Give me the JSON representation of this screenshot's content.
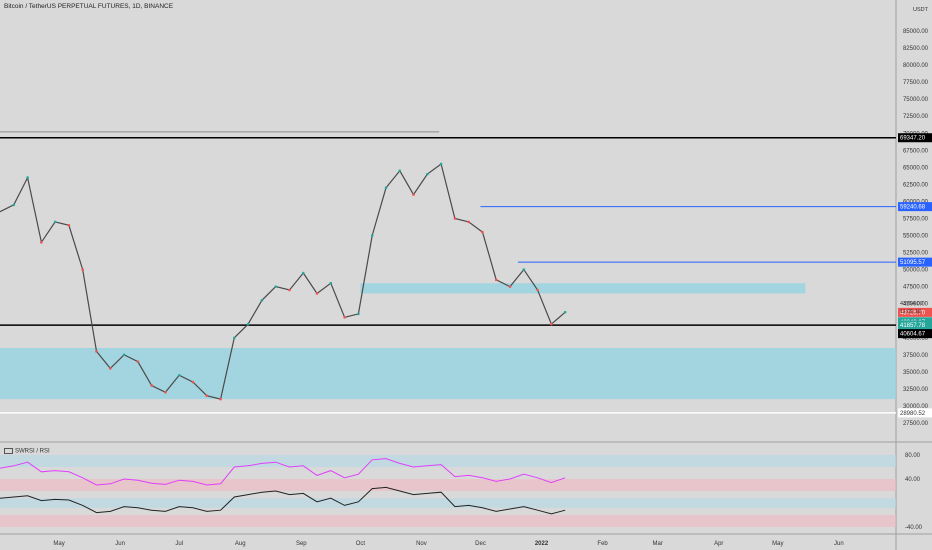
{
  "header": {
    "title": "Bitcoin / TetherUS PERPETUAL FUTURES, 1D, BINANCE",
    "currency": "USDT"
  },
  "indicator": {
    "label": "SWRSI / RSI"
  },
  "colors": {
    "background": "#d9d9d9",
    "up": "#26a69a",
    "down": "#ef5350",
    "blue_line": "#2962ff",
    "zone": "#8fd3e0",
    "rsi_magenta": "#e040fb",
    "rsi_black": "#222222"
  },
  "chart_data": {
    "type": "line",
    "x": [
      "2021-04-01",
      "2021-04-08",
      "2021-04-15",
      "2021-04-22",
      "2021-04-29",
      "2021-05-06",
      "2021-05-13",
      "2021-05-20",
      "2021-05-27",
      "2021-06-03",
      "2021-06-10",
      "2021-06-17",
      "2021-06-24",
      "2021-07-01",
      "2021-07-08",
      "2021-07-15",
      "2021-07-22",
      "2021-07-29",
      "2021-08-05",
      "2021-08-12",
      "2021-08-19",
      "2021-08-26",
      "2021-09-02",
      "2021-09-09",
      "2021-09-16",
      "2021-09-23",
      "2021-09-30",
      "2021-10-07",
      "2021-10-14",
      "2021-10-21",
      "2021-10-28",
      "2021-11-04",
      "2021-11-11",
      "2021-11-18",
      "2021-11-25",
      "2021-12-02",
      "2021-12-09",
      "2021-12-16",
      "2021-12-23",
      "2021-12-30",
      "2022-01-06",
      "2022-01-13"
    ],
    "series": [
      {
        "values": [
          58500,
          59500,
          63500,
          54000,
          57000,
          56500,
          50000,
          38000,
          35500,
          37500,
          36500,
          33000,
          32000,
          34500,
          33500,
          31500,
          31000,
          40000,
          42000,
          45500,
          47500,
          47000,
          49500,
          46500,
          48000,
          43000,
          43500,
          55000,
          62000,
          64500,
          61000,
          64000,
          65500,
          57500,
          57000,
          55500,
          48500,
          47500,
          50000,
          47000,
          42000,
          43754
        ]
      },
      {
        "values": [
          58,
          62,
          68,
          52,
          54,
          52,
          42,
          30,
          32,
          40,
          38,
          33,
          31,
          38,
          36,
          30,
          32,
          60,
          62,
          66,
          68,
          60,
          62,
          46,
          54,
          42,
          48,
          72,
          74,
          66,
          60,
          62,
          64,
          44,
          46,
          42,
          36,
          40,
          48,
          42,
          34,
          42
        ]
      },
      {
        "values": [
          8,
          10,
          12,
          4,
          6,
          5,
          -4,
          -16,
          -14,
          -6,
          -8,
          -12,
          -14,
          -6,
          -8,
          -14,
          -12,
          10,
          14,
          18,
          20,
          14,
          16,
          2,
          8,
          -4,
          2,
          24,
          26,
          20,
          14,
          16,
          18,
          -6,
          -4,
          -8,
          -14,
          -10,
          -6,
          -12,
          -18,
          -12
        ]
      }
    ],
    "y_ticks": [
      "85000.00",
      "82500.00",
      "80000.00",
      "77500.00",
      "75000.00",
      "72500.00",
      "70000.00",
      "67500.00",
      "65000.00",
      "62500.00",
      "60000.00",
      "57500.00",
      "55000.00",
      "52500.00",
      "50000.00",
      "47500.00",
      "45000.00",
      "42500.00",
      "40000.00",
      "37500.00",
      "35000.00",
      "32500.00",
      "30000.00",
      "27500.00"
    ],
    "y_range": [
      25000,
      87500
    ],
    "price_labels": [
      {
        "value": 69347.2,
        "text": "69347.20",
        "style": "black"
      },
      {
        "value": 59240.68,
        "text": "59240.68",
        "style": "blue"
      },
      {
        "value": 51095.57,
        "text": "51095.57",
        "style": "blue"
      },
      {
        "value": 43725.7,
        "text": "43725.70",
        "style": "red"
      },
      {
        "value": 42343.07,
        "text": "42343.07",
        "style": "teal"
      },
      {
        "value": 41857.78,
        "text": "41857.78",
        "style": "teal"
      },
      {
        "value": 40604.67,
        "text": "40604.67",
        "style": "black"
      },
      {
        "value": 28980.52,
        "text": "28980.52",
        "style": "white"
      }
    ],
    "last_price": {
      "value": 43754,
      "text": "43754.00",
      "countdown": "11:05:18"
    },
    "rsi_ticks": [
      "80.00",
      "40.00",
      "-40.00"
    ],
    "rsi_range": [
      -45,
      95
    ],
    "x_labels": [
      {
        "date": "2021-05-01",
        "text": "May"
      },
      {
        "date": "2021-06-01",
        "text": "Jun"
      },
      {
        "date": "2021-07-01",
        "text": "Jul"
      },
      {
        "date": "2021-08-01",
        "text": "Aug"
      },
      {
        "date": "2021-09-01",
        "text": "Sep"
      },
      {
        "date": "2021-10-01",
        "text": "Oct"
      },
      {
        "date": "2021-11-01",
        "text": "Nov"
      },
      {
        "date": "2021-12-01",
        "text": "Dec"
      },
      {
        "date": "2022-01-01",
        "text": "2022"
      },
      {
        "date": "2022-02-01",
        "text": "Feb"
      },
      {
        "date": "2022-03-01",
        "text": "Mar"
      },
      {
        "date": "2022-04-01",
        "text": "Apr"
      },
      {
        "date": "2022-05-01",
        "text": "May"
      },
      {
        "date": "2022-06-01",
        "text": "Jun"
      }
    ],
    "x_range": [
      "2021-04-01",
      "2022-06-30"
    ],
    "horizontal_lines": [
      {
        "value": 69347.2,
        "style": "black"
      },
      {
        "value": 70200,
        "style": "gray",
        "end_date": "2021-11-10"
      },
      {
        "value": 59240.68,
        "style": "blue",
        "start_date": "2021-12-01"
      },
      {
        "value": 51095.57,
        "style": "blue",
        "start_date": "2021-12-20"
      },
      {
        "value": 41857.78,
        "style": "black"
      },
      {
        "value": 28980.52,
        "style": "white"
      }
    ],
    "zones": [
      {
        "from": 31000,
        "to": 38500,
        "start_date": "2021-04-01"
      },
      {
        "from": 46500,
        "to": 48000,
        "start_date": "2021-10-01",
        "end_date": "2022-05-15"
      }
    ],
    "grid": false
  }
}
